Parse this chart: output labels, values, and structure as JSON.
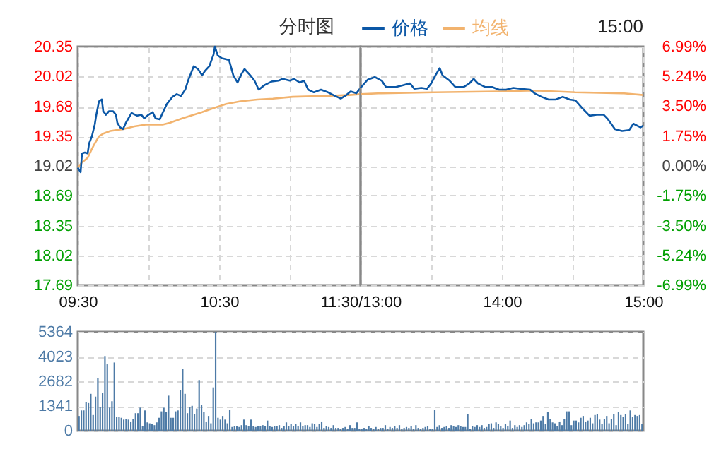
{
  "chart_data": [
    {
      "type": "line",
      "title": "分时图",
      "xlim": [
        9.5,
        11.5
      ],
      "xticks": [
        {
          "value": 9.5,
          "label": "09:30"
        },
        {
          "value": 10,
          "label": null
        },
        {
          "value": 10.5,
          "label": "10:30"
        },
        {
          "value": 11,
          "label": null
        },
        {
          "value": 11.5,
          "label": "11:30/13:00"
        }
      ],
      "ylim": [
        17.69,
        20.35
      ],
      "yticks": [
        17.69,
        18.02,
        18.35,
        18.69,
        19.02,
        19.35,
        19.68,
        20.02,
        20.35
      ],
      "grid": true,
      "series": [
        {
          "color": "#0b57a6",
          "x": [
            9.5,
            9.52,
            9.53,
            9.55,
            9.57,
            9.58,
            9.6,
            9.62,
            9.63,
            9.65,
            9.67,
            9.68,
            9.7,
            9.72,
            9.75,
            9.77,
            9.78,
            9.8,
            9.82,
            9.84,
            9.88,
            9.92,
            9.95,
            9.97,
            10,
            10.03,
            10.05,
            10.08,
            10.1,
            10.13,
            10.17,
            10.2,
            10.23,
            10.26,
            10.28,
            10.32,
            10.35,
            10.38,
            10.4,
            10.43,
            10.46,
            10.47,
            10.49,
            10.52,
            10.57,
            10.6,
            10.63,
            10.66,
            10.68,
            10.72,
            10.75,
            10.78,
            10.82,
            10.87,
            10.92,
            10.95,
            11,
            11.03,
            11.07,
            11.1,
            11.13,
            11.17,
            11.22,
            11.27,
            11.32,
            11.36,
            11.4,
            11.43,
            11.47,
            11.5
          ],
          "values": [
            19.0,
            18.95,
            19.16,
            19.17,
            19.16,
            19.27,
            19.35,
            19.48,
            19.58,
            19.74,
            19.76,
            19.63,
            19.59,
            19.63,
            19.63,
            19.59,
            19.5,
            19.45,
            19.43,
            19.5,
            19.61,
            19.58,
            19.59,
            19.55,
            19.59,
            19.62,
            19.55,
            19.54,
            19.61,
            19.71,
            19.79,
            19.82,
            19.8,
            19.87,
            19.97,
            20.13,
            20.1,
            20.03,
            20.08,
            20.13,
            20.26,
            20.35,
            20.25,
            20.22,
            20.2,
            20.03,
            19.95,
            20.05,
            20.1,
            20.03,
            19.97,
            19.87,
            19.92,
            19.96,
            19.97,
            19.99,
            19.97,
            19.99,
            19.95,
            19.97,
            19.87,
            19.84,
            19.87,
            19.84,
            19.8,
            19.77,
            19.81,
            19.85,
            19.83,
            19.89
          ]
        },
        {
          "color": "#f2b36e",
          "x": [
            9.5,
            9.53,
            9.57,
            9.6,
            9.62,
            9.65,
            9.68,
            9.73,
            9.82,
            9.9,
            9.98,
            10.1,
            10.15,
            10.22,
            10.3,
            10.38,
            10.47,
            10.55,
            10.65,
            10.77,
            10.88,
            11.02,
            11.25,
            11.42,
            11.5
          ],
          "values": [
            19.0,
            19.06,
            19.11,
            19.21,
            19.27,
            19.35,
            19.38,
            19.41,
            19.43,
            19.46,
            19.48,
            19.48,
            19.5,
            19.54,
            19.58,
            19.62,
            19.67,
            19.71,
            19.74,
            19.76,
            19.77,
            19.79,
            19.8,
            19.81,
            19.82
          ]
        }
      ]
    },
    {
      "type": "line",
      "annotations": [
        "15:00"
      ],
      "xlim": [
        13,
        15
      ],
      "tick_labels": "x",
      "xticks": [
        {
          "value": 13.5,
          "label": null
        },
        {
          "value": 14,
          "label": "14:00"
        },
        {
          "value": 14.5,
          "label": null
        },
        {
          "value": 15,
          "label": "15:00"
        }
      ],
      "ylim": [
        17.69,
        20.35
      ],
      "yticks": [
        17.69,
        18.02,
        18.35,
        18.69,
        19.02,
        19.35,
        19.68,
        20.02,
        20.35
      ],
      "y2lim": [
        -6.99,
        6.99
      ],
      "y2ticks": [
        {
          "value": -6.99,
          "label": "-6.99%"
        },
        {
          "value": -5.24,
          "label": "-5.24%"
        },
        {
          "value": -3.5,
          "label": "-3.50%"
        },
        {
          "value": -1.75,
          "label": "-1.75%"
        },
        {
          "value": 0,
          "label": "0.00%"
        },
        {
          "value": 1.75,
          "label": "1.75%"
        },
        {
          "value": 3.5,
          "label": "3.50%"
        },
        {
          "value": 5.24,
          "label": "5.24%"
        },
        {
          "value": 6.99,
          "label": "6.99%"
        }
      ],
      "grid": true,
      "legend": "top left",
      "series": [
        {
          "name": "价格",
          "color": "#0b57a6",
          "x": [
            13,
            13.05,
            13.1,
            13.15,
            13.18,
            13.25,
            13.3,
            13.35,
            13.38,
            13.43,
            13.47,
            13.5,
            13.53,
            13.56,
            13.58,
            13.63,
            13.67,
            13.73,
            13.77,
            13.8,
            13.83,
            13.88,
            13.93,
            13.98,
            14.03,
            14.08,
            14.13,
            14.2,
            14.23,
            14.28,
            14.33,
            14.38,
            14.43,
            14.48,
            14.52,
            14.57,
            14.62,
            14.67,
            14.72,
            14.75,
            14.8,
            14.85,
            14.9,
            14.93,
            14.98,
            15
          ],
          "values": [
            19.89,
            19.98,
            20.01,
            19.97,
            19.9,
            19.9,
            19.92,
            19.94,
            19.88,
            19.89,
            19.88,
            19.94,
            20.03,
            20.11,
            20.03,
            19.97,
            19.9,
            19.9,
            19.94,
            19.99,
            19.94,
            19.9,
            19.9,
            19.87,
            19.87,
            19.89,
            19.88,
            19.87,
            19.83,
            19.79,
            19.76,
            19.76,
            19.79,
            19.76,
            19.75,
            19.66,
            19.58,
            19.59,
            19.59,
            19.54,
            19.43,
            19.41,
            19.42,
            19.49,
            19.45,
            19.47
          ]
        },
        {
          "name": "均线",
          "color": "#f2b36e",
          "x": [
            13,
            13.15,
            13.52,
            13.98,
            14.23,
            14.52,
            14.85,
            15
          ],
          "values": [
            19.82,
            19.83,
            19.84,
            19.85,
            19.86,
            19.84,
            19.83,
            19.81
          ]
        }
      ]
    },
    {
      "type": "bar",
      "color": "#4d7aa6",
      "grid": "y",
      "tick_labels": "y",
      "ylim": [
        0,
        5364
      ],
      "yticks": [
        0,
        1341,
        2682,
        4023,
        5364
      ],
      "categories": [
        null,
        null,
        null,
        null,
        null,
        null,
        null,
        null,
        null,
        null,
        null,
        null,
        null,
        null,
        null,
        null,
        null,
        null,
        null,
        null,
        null,
        null,
        null,
        null,
        null,
        null,
        null,
        null,
        null,
        null,
        null,
        null,
        null,
        null,
        null,
        null,
        null,
        null,
        null,
        null,
        null,
        null,
        null,
        null,
        null,
        null,
        null,
        null,
        null,
        null,
        null,
        null,
        null,
        null,
        null,
        null,
        null,
        null,
        null,
        null,
        null,
        null,
        null,
        null,
        null,
        null,
        null,
        null,
        null,
        null,
        null,
        null,
        null,
        null,
        null,
        null,
        null,
        null,
        null,
        null,
        null,
        null,
        null,
        null,
        null,
        null,
        null,
        null,
        null,
        null,
        null,
        null,
        null,
        null,
        null,
        null,
        null,
        null,
        null,
        null,
        null,
        null,
        null,
        null,
        null,
        null,
        null,
        null,
        null,
        null,
        null,
        null,
        null,
        null,
        null,
        null,
        null,
        null,
        null,
        null,
        null,
        null,
        null,
        null,
        null,
        null,
        null,
        null,
        null,
        null,
        null,
        null,
        null,
        null,
        null,
        null,
        null,
        null,
        null,
        null,
        null,
        null,
        null,
        null,
        null,
        null,
        null,
        null,
        null,
        null,
        null,
        null,
        null,
        null,
        null,
        null,
        null,
        null,
        null,
        null,
        null,
        null,
        null,
        null,
        null,
        null,
        null,
        null,
        null,
        null,
        null,
        null,
        null,
        null,
        null,
        null,
        null,
        null,
        null,
        null,
        null,
        null,
        null,
        null,
        null,
        null,
        null,
        null,
        null,
        null,
        null,
        null,
        null,
        null,
        null,
        null,
        null,
        null,
        null,
        null,
        null,
        null,
        null,
        null,
        null,
        null,
        null,
        null,
        null,
        null,
        null,
        null,
        null,
        null,
        null,
        null,
        null,
        null,
        null,
        null,
        null,
        null,
        null,
        null,
        null,
        null,
        null,
        null,
        null,
        null,
        null,
        null,
        null,
        null,
        null,
        null,
        null,
        null,
        null,
        null
      ],
      "values": [
        800,
        1100,
        1100,
        1550,
        1500,
        2000,
        850,
        1850,
        2850,
        1300,
        2050,
        4050,
        3600,
        1250,
        1600,
        3700,
        750,
        750,
        700,
        600,
        650,
        600,
        500,
        650,
        950,
        950,
        1250,
        250,
        1100,
        450,
        400,
        350,
        300,
        450,
        700,
        1050,
        1250,
        1000,
        1900,
        700,
        700,
        1050,
        1100,
        2200,
        3350,
        2000,
        950,
        1300,
        1350,
        900,
        1200,
        2750,
        1400,
        1000,
        500,
        800,
        400,
        2350,
        5364,
        700,
        600,
        800,
        600,
        400,
        1150,
        200,
        250,
        250,
        200,
        300,
        600,
        300,
        250,
        600,
        250,
        200,
        250,
        250,
        300,
        250,
        550,
        250,
        200,
        250,
        250,
        300,
        150,
        250,
        450,
        250,
        350,
        250,
        350,
        250,
        450,
        250,
        300,
        300,
        200,
        400,
        350,
        200,
        350,
        500,
        150,
        250,
        200,
        150,
        300,
        150,
        150,
        100,
        150,
        200,
        100,
        300,
        150,
        150,
        450,
        100,
        100,
        150,
        100,
        250,
        150,
        100,
        200,
        100,
        150,
        150,
        300,
        100,
        200,
        150,
        250,
        150,
        300,
        100,
        150,
        200,
        150,
        250,
        100,
        300,
        150,
        100,
        150,
        200,
        250,
        100,
        100,
        1150,
        200,
        300,
        150,
        200,
        250,
        150,
        300,
        250,
        200,
        300,
        250,
        200,
        200,
        900,
        100,
        250,
        200,
        300,
        200,
        300,
        150,
        200,
        350,
        400,
        150,
        450,
        350,
        250,
        150,
        350,
        250,
        550,
        150,
        300,
        200,
        300,
        200,
        300,
        450,
        350,
        650,
        400,
        450,
        450,
        550,
        800,
        350,
        1000,
        650,
        450,
        400,
        250,
        500,
        300,
        650,
        1050,
        1050,
        300,
        550,
        550,
        450,
        700,
        800,
        500,
        550,
        700,
        400,
        850,
        900,
        600,
        350,
        650,
        800,
        400,
        650,
        900,
        300,
        1000,
        850,
        750,
        900,
        350,
        1100,
        750,
        850,
        800,
        850,
        350
      ]
    }
  ]
}
